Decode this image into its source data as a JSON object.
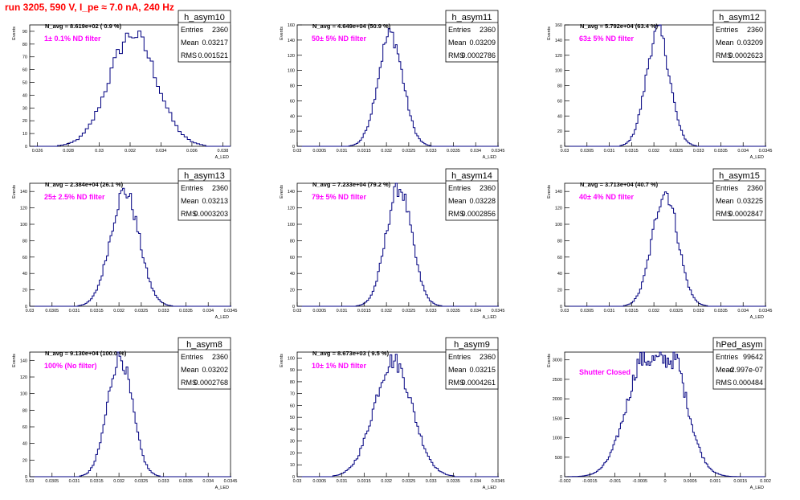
{
  "run_title": "run 3205,   590 V, I_pe ≈ 7.0 nA, 240 Hz",
  "colors": {
    "histogram": "#000080",
    "label": "#ff00ff",
    "run_title": "#ff0000",
    "axis": "#000000"
  },
  "chart_data": [
    {
      "type": "bar",
      "name": "h_asym10",
      "navg": "N_avg = 8.619e+02 ( 0.9 %)",
      "label": "1± 0.1% ND filter",
      "stats": {
        "entries": "2360",
        "mean": "0.03217",
        "rms": "0.001521"
      },
      "ylabel": "Events",
      "xlabel": "A_LED",
      "xlim": [
        0.0255,
        0.0385
      ],
      "ylim": [
        0,
        95
      ],
      "xticks": [
        0.026,
        0.028,
        0.03,
        0.032,
        0.034,
        0.036,
        0.038
      ],
      "xticklabels": [
        "0.026",
        "0.028",
        "0.03",
        "0.032",
        "0.034",
        "0.036",
        "0.038"
      ],
      "yticks": [
        0,
        10,
        20,
        30,
        40,
        50,
        60,
        70,
        80,
        90
      ],
      "hist_mean": 0.03217,
      "hist_sigma": 0.001521,
      "hist_bin": 0.0002,
      "hist_peak": 88,
      "hist_shape": "gauss"
    },
    {
      "type": "bar",
      "name": "h_asym11",
      "navg": "N_avg = 4.649e+04 (50.9 %)",
      "label": "50± 5% ND filter",
      "stats": {
        "entries": "2360",
        "mean": "0.03209",
        "rms": "0.0002786"
      },
      "ylabel": "Events",
      "xlabel": "A_LED",
      "xlim": [
        0.03,
        0.0345
      ],
      "ylim": [
        0,
        160
      ],
      "xticks": [
        0.03,
        0.0305,
        0.031,
        0.0315,
        0.032,
        0.0325,
        0.033,
        0.0335,
        0.034,
        0.0345
      ],
      "xticklabels": [
        "0.03",
        "0.0305",
        "0.031",
        "0.0315",
        "0.032",
        "0.0325",
        "0.033",
        "0.0335",
        "0.034",
        "0.0345"
      ],
      "yticks": [
        0,
        20,
        40,
        60,
        80,
        100,
        120,
        140,
        160
      ],
      "hist_mean": 0.03209,
      "hist_sigma": 0.0002786,
      "hist_bin": 4e-05,
      "hist_peak": 148,
      "hist_shape": "gauss"
    },
    {
      "type": "bar",
      "name": "h_asym12",
      "navg": "N_avg = 5.792e+04 (63.4 %)",
      "label": "63± 5% ND filter",
      "stats": {
        "entries": "2360",
        "mean": "0.03209",
        "rms": "0.0002623"
      },
      "ylabel": "Events",
      "xlabel": "A_LED",
      "xlim": [
        0.03,
        0.0345
      ],
      "ylim": [
        0,
        160
      ],
      "xticks": [
        0.03,
        0.0305,
        0.031,
        0.0315,
        0.032,
        0.0325,
        0.033,
        0.0335,
        0.034,
        0.0345
      ],
      "xticklabels": [
        "0.03",
        "0.0305",
        "0.031",
        "0.0315",
        "0.032",
        "0.0325",
        "0.033",
        "0.0335",
        "0.034",
        "0.0345"
      ],
      "yticks": [
        0,
        20,
        40,
        60,
        80,
        100,
        120,
        140,
        160
      ],
      "hist_mean": 0.03209,
      "hist_sigma": 0.0002623,
      "hist_bin": 4e-05,
      "hist_peak": 152,
      "hist_shape": "gauss"
    },
    {
      "type": "bar",
      "name": "h_asym13",
      "navg": "N_avg = 2.384e+04 (26.1 %)",
      "label": "25± 2.5% ND filter",
      "stats": {
        "entries": "2360",
        "mean": "0.03213",
        "rms": "0.0003203"
      },
      "ylabel": "Events",
      "xlabel": "A_LED",
      "xlim": [
        0.03,
        0.0345
      ],
      "ylim": [
        0,
        150
      ],
      "xticks": [
        0.03,
        0.0305,
        0.031,
        0.0315,
        0.032,
        0.0325,
        0.033,
        0.0335,
        0.034,
        0.0345
      ],
      "xticklabels": [
        "0.03",
        "0.0305",
        "0.031",
        "0.0315",
        "0.032",
        "0.0325",
        "0.033",
        "0.0335",
        "0.034",
        "0.0345"
      ],
      "yticks": [
        0,
        20,
        40,
        60,
        80,
        100,
        120,
        140
      ],
      "hist_mean": 0.03213,
      "hist_sigma": 0.0003203,
      "hist_bin": 4e-05,
      "hist_peak": 140,
      "hist_shape": "gauss"
    },
    {
      "type": "bar",
      "name": "h_asym14",
      "navg": "N_avg = 7.233e+04 (79.2 %)",
      "label": "79± 5% ND filter",
      "stats": {
        "entries": "2360",
        "mean": "0.03228",
        "rms": "0.0002856"
      },
      "ylabel": "Events",
      "xlabel": "A_LED",
      "xlim": [
        0.03,
        0.0345
      ],
      "ylim": [
        0,
        150
      ],
      "xticks": [
        0.03,
        0.0305,
        0.031,
        0.0315,
        0.032,
        0.0325,
        0.033,
        0.0335,
        0.034,
        0.0345
      ],
      "xticklabels": [
        "0.03",
        "0.0305",
        "0.031",
        "0.0315",
        "0.032",
        "0.0325",
        "0.033",
        "0.0335",
        "0.034",
        "0.0345"
      ],
      "yticks": [
        0,
        20,
        40,
        60,
        80,
        100,
        120,
        140
      ],
      "hist_mean": 0.03228,
      "hist_sigma": 0.0002856,
      "hist_bin": 4e-05,
      "hist_peak": 145,
      "hist_shape": "gauss"
    },
    {
      "type": "bar",
      "name": "h_asym15",
      "navg": "N_avg = 3.713e+04 (40.7 %)",
      "label": "40± 4% ND filter",
      "stats": {
        "entries": "2360",
        "mean": "0.03225",
        "rms": "0.0002847"
      },
      "ylabel": "Events",
      "xlabel": "A_LED",
      "xlim": [
        0.03,
        0.0345
      ],
      "ylim": [
        0,
        150
      ],
      "xticks": [
        0.03,
        0.0305,
        0.031,
        0.0315,
        0.032,
        0.0325,
        0.033,
        0.0335,
        0.034,
        0.0345
      ],
      "xticklabels": [
        "0.03",
        "0.0305",
        "0.031",
        "0.0315",
        "0.032",
        "0.0325",
        "0.033",
        "0.0335",
        "0.034",
        "0.0345"
      ],
      "yticks": [
        0,
        20,
        40,
        60,
        80,
        100,
        120,
        140
      ],
      "hist_mean": 0.03225,
      "hist_sigma": 0.0002847,
      "hist_bin": 4e-05,
      "hist_peak": 140,
      "hist_shape": "gauss"
    },
    {
      "type": "bar",
      "name": "h_asym8",
      "navg": "N_avg = 9.130e+04 (100.0 %)",
      "label": "100% (No filter)",
      "stats": {
        "entries": "2360",
        "mean": "0.03202",
        "rms": "0.0002768"
      },
      "ylabel": "Events",
      "xlabel": "A_LED",
      "xlim": [
        0.03,
        0.0345
      ],
      "ylim": [
        0,
        150
      ],
      "xticks": [
        0.03,
        0.0305,
        0.031,
        0.0315,
        0.032,
        0.0325,
        0.033,
        0.0335,
        0.034,
        0.0345
      ],
      "xticklabels": [
        "0.03",
        "0.0305",
        "0.031",
        "0.0315",
        "0.032",
        "0.0325",
        "0.033",
        "0.0335",
        "0.034",
        "0.0345"
      ],
      "yticks": [
        0,
        20,
        40,
        60,
        80,
        100,
        120,
        140
      ],
      "hist_mean": 0.03202,
      "hist_sigma": 0.0002768,
      "hist_bin": 4e-05,
      "hist_peak": 145,
      "hist_shape": "gauss"
    },
    {
      "type": "bar",
      "name": "h_asym9",
      "navg": "N_avg = 8.673e+03 ( 9.5 %)",
      "label": "10± 1% ND filter",
      "stats": {
        "entries": "2360",
        "mean": "0.03215",
        "rms": "0.0004261"
      },
      "ylabel": "Events",
      "xlabel": "A_LED",
      "xlim": [
        0.03,
        0.0345
      ],
      "ylim": [
        0,
        105
      ],
      "xticks": [
        0.03,
        0.0305,
        0.031,
        0.0315,
        0.032,
        0.0325,
        0.033,
        0.0335,
        0.034,
        0.0345
      ],
      "xticklabels": [
        "0.03",
        "0.0305",
        "0.031",
        "0.0315",
        "0.032",
        "0.0325",
        "0.033",
        "0.0335",
        "0.034",
        "0.0345"
      ],
      "yticks": [
        0,
        10,
        20,
        30,
        40,
        50,
        60,
        70,
        80,
        90,
        100
      ],
      "hist_mean": 0.03215,
      "hist_sigma": 0.0004261,
      "hist_bin": 4e-05,
      "hist_peak": 98,
      "hist_shape": "gauss"
    },
    {
      "type": "bar",
      "name": "hPed_asym",
      "navg": "",
      "label": "Shutter Closed",
      "stats": {
        "entries": "99642",
        "mean": "-2.997e-07",
        "rms": "0.000484"
      },
      "ylabel": "Events",
      "xlabel": "A_LED",
      "xlim": [
        -0.002,
        0.002
      ],
      "ylim": [
        0,
        3200
      ],
      "xticks": [
        -0.002,
        -0.0015,
        -0.001,
        -0.0005,
        0,
        0.0005,
        0.001,
        0.0015,
        0.002
      ],
      "xticklabels": [
        "-0.002",
        "-0.0015",
        "-0.001",
        "-0.0005",
        "0",
        "0.0005",
        "0.001",
        "0.0015",
        "0.002"
      ],
      "yticks": [
        0,
        500,
        1000,
        1500,
        2000,
        2500,
        3000
      ],
      "hist_mean": 0,
      "hist_sigma": 0.000484,
      "hist_bin": 3e-05,
      "hist_peak": 3000,
      "hist_shape": "double"
    }
  ]
}
